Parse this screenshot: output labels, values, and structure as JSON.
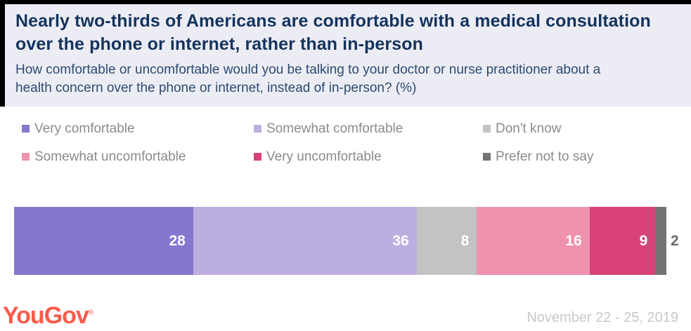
{
  "header": {
    "title": "Nearly two-thirds of Americans are comfortable with a medical consultation over the phone or internet, rather than in-person",
    "subtitle": "How comfortable or uncomfortable would you be talking to your doctor or nurse practitioner about a health concern over the phone or internet, instead of in-person? (%)"
  },
  "chart_data": {
    "type": "bar",
    "subtype": "horizontal-stacked-single-bar",
    "unit": "%",
    "categories": [
      "Very comfortable",
      "Somewhat comfortable",
      "Don't know",
      "Somewhat uncomfortable",
      "Very uncomfortable",
      "Prefer not to say"
    ],
    "values": [
      28,
      36,
      8,
      16,
      9,
      2
    ],
    "colors": [
      "#8776ce",
      "#bdaee0",
      "#c3c2c4",
      "#ef92ae",
      "#d84278",
      "#747275"
    ],
    "title": "Nearly two-thirds of Americans are comfortable with a medical consultation over the phone or internet, rather than in-person",
    "xlabel": "",
    "ylabel": "",
    "xlim": [
      0,
      100
    ],
    "grid": false,
    "legend_position": "top",
    "value_labels": "inside-right, white; smallest segment labeled outside in gray"
  },
  "legend": {
    "text_color": "#8b8b8b"
  },
  "footer": {
    "brand": "YouGov",
    "trademark": "®",
    "brand_color": "#fb5a4b",
    "date_range": "November 22 - 25, 2019"
  }
}
